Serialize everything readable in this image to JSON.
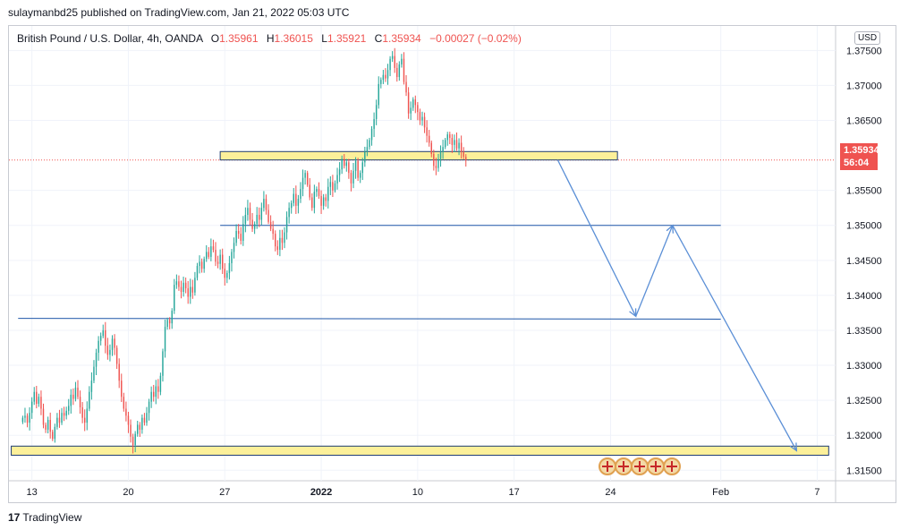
{
  "header": {
    "publisher_line": "sulaymanbd25 published on TradingView.com, Jan 21, 2022 05:03 UTC"
  },
  "legend": {
    "symbol": "British Pound / U.S. Dollar, 4h, OANDA",
    "open_label": "O",
    "open": "1.35961",
    "high_label": "H",
    "high": "1.36015",
    "low_label": "L",
    "low": "1.35921",
    "close_label": "C",
    "close": "1.35934",
    "change": "−0.00027 (−0.02%)"
  },
  "price_axis": {
    "currency": "USD"
  },
  "last_price": {
    "value": "1.35934",
    "countdown": "56:04"
  },
  "footer": {
    "brand": "TradingView"
  },
  "colors": {
    "up": "#26a69a",
    "down": "#ef5350",
    "zone_fill": "#fcf09a",
    "zone_border": "#1e3c74",
    "line": "#1e56a8",
    "arrow": "#5b8fd6"
  },
  "chart_data": {
    "type": "candlestick",
    "title": "",
    "xlabel": "",
    "ylabel": "",
    "ylim": [
      1.3135,
      1.3785
    ],
    "grid": true,
    "y_ticks": [
      "1.31500",
      "1.32000",
      "1.32500",
      "1.33000",
      "1.33500",
      "1.34000",
      "1.34500",
      "1.35000",
      "1.35500",
      "1.36500",
      "1.37000",
      "1.37500"
    ],
    "x_ticks": [
      {
        "label": "13",
        "t": 4
      },
      {
        "label": "20",
        "t": 46
      },
      {
        "label": "27",
        "t": 88
      },
      {
        "label": "2022",
        "t": 130
      },
      {
        "label": "10",
        "t": 172
      },
      {
        "label": "17",
        "t": 214
      },
      {
        "label": "24",
        "t": 256
      },
      {
        "label": "Feb",
        "t": 304
      },
      {
        "label": "7",
        "t": 346
      }
    ],
    "x_range": [
      -6,
      354
    ],
    "series": [
      {
        "close": [
          1.3225,
          1.3228,
          1.3218,
          1.3232,
          1.3248,
          1.3262,
          1.3245,
          1.3255,
          1.3238,
          1.3215,
          1.3208,
          1.3222,
          1.3205,
          1.3195,
          1.3212,
          1.3225,
          1.3218,
          1.3232,
          1.3228,
          1.3235,
          1.3242,
          1.3258,
          1.3252,
          1.3268,
          1.3255,
          1.324,
          1.3225,
          1.3218,
          1.3238,
          1.3262,
          1.3278,
          1.3298,
          1.3318,
          1.3335,
          1.3342,
          1.335,
          1.3328,
          1.3315,
          1.3322,
          1.3338,
          1.3325,
          1.3302,
          1.3278,
          1.3255,
          1.3238,
          1.3228,
          1.3215,
          1.3198,
          1.3186,
          1.3202,
          1.3215,
          1.3208,
          1.3225,
          1.3218,
          1.3232,
          1.3248,
          1.3262,
          1.3255,
          1.327,
          1.3262,
          1.3285,
          1.332,
          1.3355,
          1.3365,
          1.336,
          1.3378,
          1.3415,
          1.342,
          1.3412,
          1.3405,
          1.3418,
          1.341,
          1.3398,
          1.3412,
          1.3404,
          1.3425,
          1.3442,
          1.3448,
          1.3438,
          1.3452,
          1.3462,
          1.3455,
          1.347,
          1.3465,
          1.3448,
          1.3445,
          1.3458,
          1.3438,
          1.3425,
          1.3432,
          1.3446,
          1.3462,
          1.3475,
          1.3492,
          1.3488,
          1.3478,
          1.3502,
          1.3515,
          1.3525,
          1.3508,
          1.3495,
          1.3502,
          1.3515,
          1.3508,
          1.3525,
          1.3538,
          1.3522,
          1.3505,
          1.3495,
          1.3488,
          1.347,
          1.3465,
          1.3482,
          1.3475,
          1.349,
          1.3512,
          1.3525,
          1.3532,
          1.3545,
          1.3528,
          1.3538,
          1.3552,
          1.3568,
          1.3575,
          1.3558,
          1.354,
          1.3525,
          1.3548,
          1.3552,
          1.3542,
          1.3528,
          1.354,
          1.3535,
          1.3555,
          1.3562,
          1.355,
          1.356,
          1.3572,
          1.358,
          1.3595,
          1.3585,
          1.359,
          1.3575,
          1.356,
          1.3578,
          1.3592,
          1.3568,
          1.3575,
          1.359,
          1.3605,
          1.3612,
          1.3622,
          1.3638,
          1.3652,
          1.3672,
          1.3702,
          1.3708,
          1.3715,
          1.371,
          1.3722,
          1.3738,
          1.3742,
          1.3725,
          1.3712,
          1.373,
          1.3738,
          1.3705,
          1.369,
          1.366,
          1.3668,
          1.368,
          1.3672,
          1.3662,
          1.365,
          1.3655,
          1.364,
          1.3628,
          1.3618,
          1.3602,
          1.3585,
          1.3582,
          1.3595,
          1.3605,
          1.3612,
          1.3622,
          1.363,
          1.3625,
          1.3615,
          1.3622,
          1.361,
          1.3618,
          1.3605,
          1.3598,
          1.3593
        ]
      }
    ],
    "zones": [
      {
        "from": [
          86,
          1.36055
        ],
        "to": [
          259,
          1.35935
        ]
      },
      {
        "from": [
          -5,
          1.31715
        ],
        "to": [
          351,
          1.31845
        ]
      }
    ],
    "levels": [
      {
        "from": [
          -2,
          1.3367
        ],
        "to": [
          304,
          1.3366
        ]
      },
      {
        "from": [
          86,
          1.35
        ],
        "to": [
          304,
          1.35
        ]
      }
    ],
    "projection": [
      [
        1.35934,
        233
      ],
      [
        1.337,
        267
      ],
      [
        1.35,
        283
      ],
      [
        1.3178,
        337
      ]
    ],
    "last_price_line": 1.35934,
    "events": 5
  }
}
